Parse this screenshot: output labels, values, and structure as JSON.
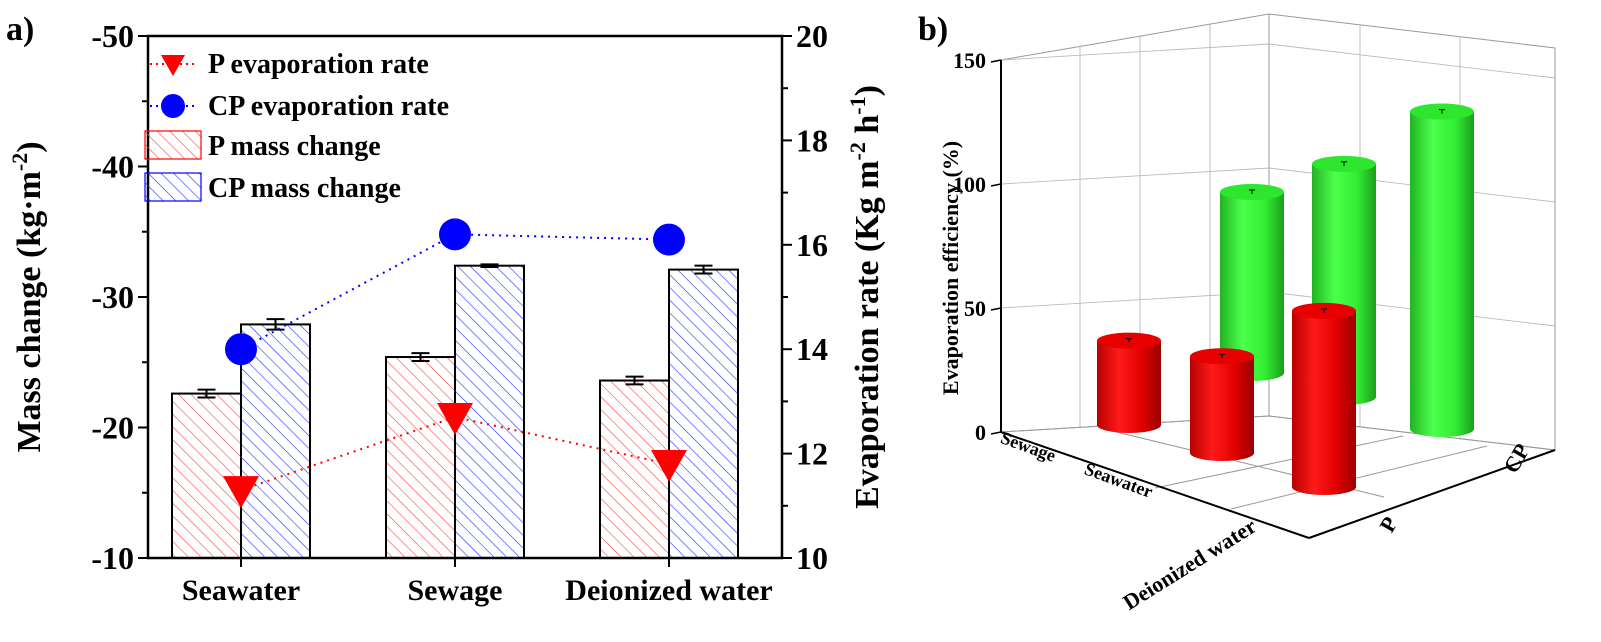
{
  "panel_a_label": "a)",
  "panel_b_label": "b)",
  "chart_data": [
    {
      "type": "bar",
      "panel": "a)",
      "categories": [
        "Seawater",
        "Sewage",
        "Deionized water"
      ],
      "series": [
        {
          "name": "P mass change",
          "kind": "bar",
          "axis": "left",
          "color": "#ff0000",
          "hatch": "diagonal",
          "values": [
            -22.6,
            -25.4,
            -23.6
          ],
          "errors": [
            0.3,
            0.3,
            0.3
          ]
        },
        {
          "name": "CP mass change",
          "kind": "bar",
          "axis": "left",
          "color": "#0000ff",
          "hatch": "diagonal",
          "values": [
            -27.9,
            -32.4,
            -32.1
          ],
          "errors": [
            0.4,
            0.1,
            0.3
          ]
        },
        {
          "name": "P evaporation rate",
          "kind": "line-marker",
          "marker": "triangle-down",
          "axis": "right",
          "color": "#ff0000",
          "values": [
            11.3,
            12.7,
            11.8
          ]
        },
        {
          "name": "CP evaporation rate",
          "kind": "line-marker",
          "marker": "circle",
          "axis": "right",
          "color": "#0000ff",
          "values": [
            14.0,
            16.2,
            16.1
          ]
        }
      ],
      "ylabel_left": "Mass change (kg·m",
      "ylabel_left_sup": "-2",
      "ylabel_left_tail": ")",
      "ylim_left": [
        -10,
        -50
      ],
      "yticks_left": [
        "-10",
        "-20",
        "-30",
        "-40",
        "-50"
      ],
      "ylabel_right": "Evaporation rate (Kg m",
      "ylabel_right_sup1": "-2",
      "ylabel_right_mid": " h",
      "ylabel_right_sup2": "-1",
      "ylabel_right_tail": ")",
      "ylim_right": [
        10,
        20
      ],
      "yticks_right": [
        "10",
        "12",
        "14",
        "16",
        "18",
        "20"
      ],
      "legend": [
        "P evaporation rate",
        "CP evaporation rate",
        "P mass change",
        "CP mass change"
      ],
      "legend_position": "top-left",
      "grid": false
    },
    {
      "type": "bar",
      "panel": "b)",
      "style": "3d-cylinder",
      "categories": [
        "Seawater",
        "Sewage",
        "Deionized water"
      ],
      "series": [
        {
          "name": "P",
          "color": "#ff0000",
          "values": [
            39,
            34,
            71
          ]
        },
        {
          "name": "CP",
          "color": "#00ee00",
          "values": [
            94,
            73,
            128
          ]
        }
      ],
      "zlabel": "Evaporation efficiency (%)",
      "zlim": [
        0,
        150
      ],
      "zticks": [
        "0",
        "50",
        "100",
        "150"
      ],
      "series_axis_labels": [
        "P",
        "CP"
      ],
      "category_axis_labels": [
        "Sewage",
        "Seawater",
        "Deionized water"
      ],
      "grid": true
    }
  ]
}
